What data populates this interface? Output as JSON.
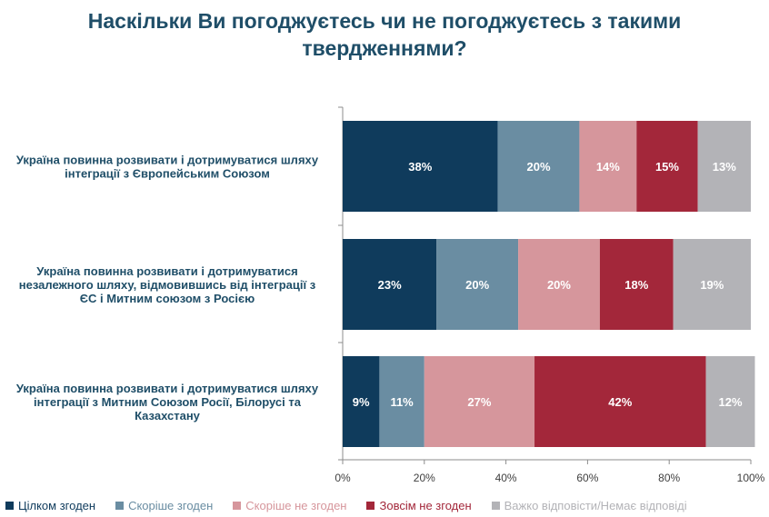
{
  "title_line1": "Наскільки Ви погоджуєтесь чи не погоджуєтесь з такими",
  "title_line2": "твердженнями?",
  "chart_data": {
    "type": "bar",
    "orientation": "horizontal-stacked-100",
    "categories": [
      [
        "Україна повинна розвивати і дотримуватися шляху",
        "інтеграції з Європейським Союзом"
      ],
      [
        "Україна повинна розвивати і дотримуватися",
        "незалежного шляху, відмовившись від інтеграції з",
        "ЄС і Митним союзом з Росією"
      ],
      [
        "Україна повинна розвивати і дотримуватися шляху",
        "інтеграції з Митним Союзом Росії, Білорусі та",
        "Казахстану"
      ]
    ],
    "series": [
      {
        "name": "Цілком згоден",
        "color": "#0f3b5c",
        "values": [
          38,
          23,
          9
        ]
      },
      {
        "name": "Скоріше згоден",
        "color": "#6a8da2",
        "values": [
          20,
          20,
          11
        ]
      },
      {
        "name": "Скоріше не згоден",
        "color": "#d6969c",
        "values": [
          14,
          20,
          27
        ]
      },
      {
        "name": "Зовсім не згоден",
        "color": "#a3273a",
        "values": [
          15,
          18,
          42
        ]
      },
      {
        "name": "Важко відповісти/Немає відповіді",
        "color": "#b3b3b7",
        "values": [
          13,
          19,
          12
        ]
      }
    ],
    "x_ticks": [
      "0%",
      "20%",
      "40%",
      "60%",
      "80%",
      "100%"
    ],
    "xlim": [
      0,
      100
    ],
    "grid": false,
    "legend_position": "bottom"
  }
}
